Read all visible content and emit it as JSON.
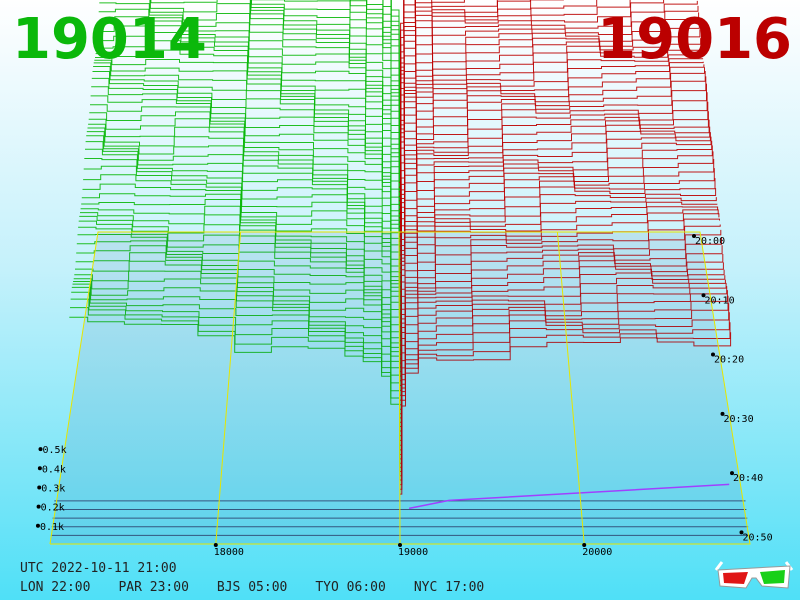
{
  "header": {
    "bid_price": "19014",
    "ask_price": "19016"
  },
  "colors": {
    "bid": "#0bb80b",
    "ask": "#bb0000",
    "grid": "#e6e600",
    "base": "#202050",
    "highlight": "#a040ff"
  },
  "chart_data": {
    "type": "area",
    "title": "",
    "xlabel": "",
    "ylabel": "",
    "view": "3d-depth",
    "x_ticks": [
      "18000",
      "19000",
      "20000"
    ],
    "xlim": [
      17100,
      20900
    ],
    "y_ticks": [
      "0.1k",
      "0.2k",
      "0.3k",
      "0.4k",
      "0.5k"
    ],
    "ylim": [
      0,
      0.55
    ],
    "time_ticks": [
      "20:00",
      "20:10",
      "20:20",
      "20:30",
      "20:40",
      "20:50"
    ],
    "series": [
      {
        "name": "bid",
        "x": [
          17200,
          17300,
          17500,
          17700,
          17900,
          18100,
          18300,
          18500,
          18700,
          18800,
          18900,
          18950,
          19000
        ],
        "depth": [
          1.0,
          0.98,
          0.97,
          0.96,
          0.95,
          0.88,
          0.86,
          0.84,
          0.81,
          0.77,
          0.72,
          0.6,
          0.1
        ]
      },
      {
        "name": "ask",
        "x": [
          19000,
          19010,
          19030,
          19100,
          19200,
          19400,
          19600,
          19800,
          20000,
          20200,
          20400,
          20600,
          20800
        ],
        "depth": [
          0.1,
          0.55,
          0.72,
          0.79,
          0.82,
          0.84,
          0.86,
          0.87,
          0.88,
          0.89,
          0.9,
          0.92,
          0.95
        ]
      }
    ]
  },
  "footer": {
    "utc": "UTC 2022-10-11 21:00",
    "zones": [
      "LON 22:00",
      "PAR 23:00",
      "BJS 05:00",
      "TYO 06:00",
      "NYC 17:00"
    ]
  },
  "icons": {
    "glasses": "anaglyph-3d-glasses-icon"
  }
}
